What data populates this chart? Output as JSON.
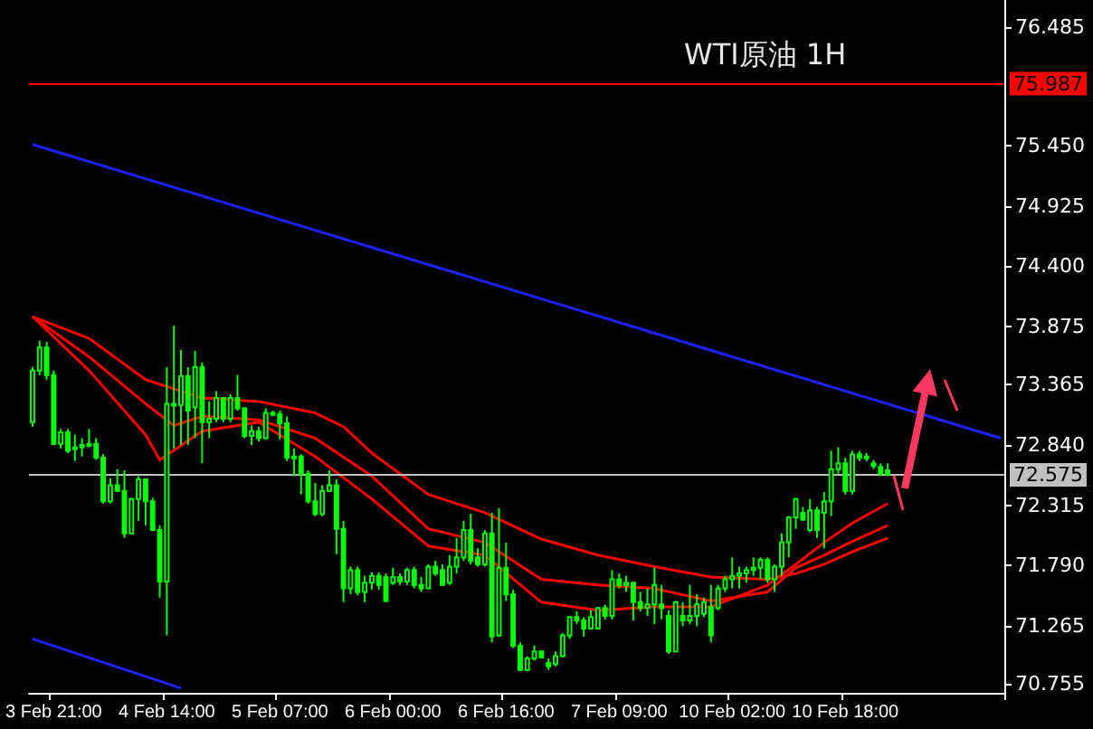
{
  "chart_data": {
    "type": "candlestick",
    "title": "WTI原油 1H",
    "color": "#00ff00",
    "categories": [
      null,
      null,
      null,
      "3 Feb 21:00",
      null,
      null,
      null,
      null,
      null,
      null,
      null,
      null,
      null,
      null,
      null,
      null,
      null,
      null,
      null,
      "4 Feb 14:00",
      null,
      null,
      null,
      null,
      null,
      null,
      null,
      null,
      null,
      null,
      null,
      null,
      null,
      null,
      null,
      "5 Feb 07:00",
      null,
      null,
      null,
      null,
      null,
      null,
      null,
      null,
      null,
      null,
      null,
      null,
      null,
      null,
      null,
      "6 Feb 00:00",
      null,
      null,
      null,
      null,
      null,
      null,
      null,
      null,
      null,
      null,
      null,
      null,
      null,
      null,
      null,
      "6 Feb 16:00",
      null,
      null,
      null,
      null,
      null,
      null,
      null,
      null,
      null,
      null,
      null,
      null,
      null,
      null,
      null,
      "7 Feb 09:00",
      null,
      null,
      null,
      null,
      null,
      null,
      null,
      null,
      null,
      null,
      null,
      null,
      null,
      null,
      null,
      "10 Feb 02:00",
      null,
      null,
      null,
      null,
      null,
      null,
      null,
      null,
      null,
      null,
      null,
      null,
      null,
      null,
      null,
      "10 Feb 18:00",
      null,
      null,
      null,
      null,
      null,
      null,
      null,
      null,
      null,
      null,
      null,
      null,
      null,
      null,
      null,
      null,
      null,
      null,
      null,
      null,
      null,
      null
    ],
    "ohlc": [
      [
        73.04,
        73.52,
        73.0,
        73.49
      ],
      [
        73.49,
        73.75,
        73.45,
        73.69
      ],
      [
        73.69,
        73.74,
        73.41,
        73.45
      ],
      [
        73.45,
        73.49,
        72.84,
        72.85
      ],
      [
        72.85,
        72.98,
        72.81,
        72.95
      ],
      [
        72.95,
        72.98,
        72.77,
        72.79
      ],
      [
        72.81,
        72.93,
        72.7,
        72.82
      ],
      [
        72.82,
        72.9,
        72.74,
        72.84
      ],
      [
        72.84,
        72.98,
        72.82,
        72.85
      ],
      [
        72.85,
        72.9,
        72.71,
        72.73
      ],
      [
        72.73,
        72.76,
        72.33,
        72.35
      ],
      [
        72.35,
        72.55,
        72.33,
        72.49
      ],
      [
        72.49,
        72.63,
        72.43,
        72.44
      ],
      [
        72.44,
        72.62,
        72.03,
        72.07
      ],
      [
        72.07,
        72.38,
        72.07,
        72.37
      ],
      [
        72.37,
        72.57,
        72.18,
        72.54
      ],
      [
        72.54,
        72.55,
        72.14,
        72.35
      ],
      [
        72.35,
        72.38,
        72.1,
        72.1
      ],
      [
        72.1,
        72.14,
        71.51,
        71.65
      ],
      [
        71.65,
        73.52,
        71.18,
        73.2
      ],
      [
        73.2,
        73.88,
        72.81,
        73.19
      ],
      [
        73.19,
        73.67,
        72.84,
        73.44
      ],
      [
        73.44,
        73.52,
        72.84,
        73.14
      ],
      [
        73.17,
        73.66,
        72.9,
        73.52
      ],
      [
        73.52,
        73.56,
        72.68,
        73.04
      ],
      [
        73.04,
        73.22,
        72.9,
        73.07
      ],
      [
        73.07,
        73.31,
        73.04,
        73.25
      ],
      [
        73.25,
        73.25,
        73.04,
        73.07
      ],
      [
        73.07,
        73.28,
        73.04,
        73.25
      ],
      [
        73.25,
        73.45,
        73.14,
        73.16
      ],
      [
        73.16,
        73.17,
        72.9,
        72.92
      ],
      [
        72.92,
        73.01,
        72.84,
        72.96
      ],
      [
        72.96,
        73.0,
        72.87,
        72.9
      ],
      [
        72.9,
        73.16,
        72.89,
        73.12
      ],
      [
        73.12,
        73.14,
        73.09,
        73.11
      ],
      [
        73.11,
        73.14,
        72.89,
        73.03
      ],
      [
        73.03,
        73.09,
        72.7,
        72.73
      ],
      [
        72.73,
        72.81,
        72.57,
        72.74
      ],
      [
        72.74,
        72.76,
        72.41,
        72.59
      ],
      [
        72.59,
        72.62,
        72.33,
        72.35
      ],
      [
        72.35,
        72.51,
        72.22,
        72.24
      ],
      [
        72.24,
        72.49,
        72.22,
        72.44
      ],
      [
        72.44,
        72.62,
        72.43,
        72.49
      ],
      [
        72.49,
        72.54,
        71.89,
        72.11
      ],
      [
        72.11,
        72.18,
        71.47,
        71.59
      ],
      [
        71.59,
        71.78,
        71.54,
        71.75
      ],
      [
        71.75,
        71.78,
        71.53,
        71.56
      ],
      [
        71.56,
        71.7,
        71.47,
        71.64
      ],
      [
        71.64,
        71.73,
        71.58,
        71.7
      ],
      [
        71.7,
        71.73,
        71.58,
        71.62
      ],
      [
        71.69,
        71.72,
        71.47,
        71.48
      ],
      [
        71.64,
        71.77,
        71.62,
        71.69
      ],
      [
        71.69,
        71.72,
        71.62,
        71.65
      ],
      [
        71.65,
        71.77,
        71.62,
        71.75
      ],
      [
        71.75,
        71.78,
        71.59,
        71.62
      ],
      [
        71.62,
        71.69,
        71.56,
        71.59
      ],
      [
        71.59,
        71.8,
        71.59,
        71.78
      ],
      [
        71.78,
        71.83,
        71.7,
        71.72
      ],
      [
        71.75,
        71.8,
        71.62,
        71.62
      ],
      [
        71.64,
        71.88,
        71.62,
        71.78
      ],
      [
        71.78,
        72.03,
        71.72,
        71.86
      ],
      [
        71.86,
        72.18,
        71.83,
        72.1
      ],
      [
        72.1,
        72.24,
        71.8,
        71.83
      ],
      [
        71.86,
        71.94,
        71.78,
        71.8
      ],
      [
        71.8,
        72.1,
        71.78,
        72.07
      ],
      [
        72.07,
        72.25,
        71.12,
        71.17
      ],
      [
        71.18,
        72.29,
        71.17,
        71.77
      ],
      [
        71.77,
        71.99,
        71.48,
        71.54
      ],
      [
        71.54,
        71.58,
        71.07,
        71.09
      ],
      [
        71.09,
        71.12,
        70.87,
        70.88
      ],
      [
        70.88,
        71.0,
        70.87,
        70.98
      ],
      [
        70.98,
        71.09,
        70.96,
        71.04
      ],
      [
        71.04,
        71.05,
        70.98,
        70.99
      ],
      [
        70.94,
        70.98,
        70.88,
        70.91
      ],
      [
        70.93,
        71.04,
        70.91,
        71.0
      ],
      [
        71.0,
        71.2,
        70.99,
        71.18
      ],
      [
        71.18,
        71.35,
        71.15,
        71.34
      ],
      [
        71.34,
        71.39,
        71.28,
        71.31
      ],
      [
        71.31,
        71.34,
        71.17,
        71.24
      ],
      [
        71.24,
        71.4,
        71.24,
        71.34
      ],
      [
        71.24,
        71.43,
        71.24,
        71.42
      ],
      [
        71.42,
        71.45,
        71.32,
        71.35
      ],
      [
        71.35,
        71.75,
        71.32,
        71.67
      ],
      [
        71.67,
        71.72,
        71.59,
        71.62
      ],
      [
        71.62,
        71.7,
        71.56,
        71.64
      ],
      [
        71.64,
        71.64,
        71.31,
        71.47
      ],
      [
        71.47,
        71.56,
        71.39,
        71.42
      ],
      [
        71.42,
        71.59,
        71.35,
        71.45
      ],
      [
        71.45,
        71.77,
        71.28,
        71.62
      ],
      [
        71.45,
        71.62,
        71.32,
        71.42
      ],
      [
        71.35,
        71.4,
        71.02,
        71.04
      ],
      [
        71.04,
        71.48,
        71.04,
        71.47
      ],
      [
        71.35,
        71.47,
        71.26,
        71.31
      ],
      [
        71.31,
        71.62,
        71.28,
        71.35
      ],
      [
        71.35,
        71.54,
        71.26,
        71.45
      ],
      [
        71.37,
        71.51,
        71.34,
        71.47
      ],
      [
        71.43,
        71.62,
        71.12,
        71.18
      ],
      [
        71.42,
        71.62,
        71.4,
        71.59
      ],
      [
        71.59,
        71.7,
        71.56,
        71.67
      ],
      [
        71.67,
        71.86,
        71.59,
        71.7
      ],
      [
        71.7,
        71.78,
        71.59,
        71.72
      ],
      [
        71.72,
        71.78,
        71.64,
        71.75
      ],
      [
        71.75,
        71.86,
        71.7,
        71.77
      ],
      [
        71.77,
        71.86,
        71.67,
        71.84
      ],
      [
        71.84,
        71.86,
        71.64,
        71.67
      ],
      [
        71.67,
        71.8,
        71.56,
        71.78
      ],
      [
        71.78,
        72.07,
        71.7,
        71.99
      ],
      [
        71.99,
        72.22,
        71.86,
        72.21
      ],
      [
        72.21,
        72.38,
        72.11,
        72.37
      ],
      [
        72.25,
        72.3,
        72.18,
        72.19
      ],
      [
        72.1,
        72.37,
        72.08,
        72.27
      ],
      [
        72.27,
        72.3,
        72.03,
        72.1
      ],
      [
        72.25,
        72.43,
        71.94,
        72.35
      ],
      [
        72.35,
        72.79,
        72.22,
        72.63
      ],
      [
        72.63,
        72.82,
        72.59,
        72.68
      ],
      [
        72.68,
        72.73,
        72.41,
        72.44
      ],
      [
        72.44,
        72.79,
        72.41,
        72.76
      ],
      [
        72.76,
        72.79,
        72.7,
        72.73
      ],
      [
        72.73,
        72.77,
        72.7,
        72.74
      ],
      [
        72.68,
        72.71,
        72.63,
        72.66
      ],
      [
        72.65,
        72.68,
        72.57,
        72.59
      ],
      [
        72.62,
        72.68,
        72.57,
        72.58
      ],
      null,
      null,
      null,
      null,
      null,
      null,
      null,
      null,
      null,
      null,
      null,
      null,
      null,
      null,
      null,
      null
    ],
    "series": [
      {
        "type": "line",
        "color": "#ff0000",
        "values": [
          73.96,
          null,
          null,
          null,
          null,
          null,
          null,
          null,
          73.77,
          null,
          null,
          null,
          null,
          null,
          null,
          null,
          73.41,
          null,
          null,
          null,
          null,
          null,
          null,
          null,
          73.25,
          null,
          null,
          null,
          null,
          null,
          null,
          null,
          73.22,
          null,
          null,
          null,
          null,
          null,
          null,
          null,
          73.12,
          null,
          null,
          null,
          73.0,
          null,
          null,
          null,
          72.77,
          null,
          null,
          null,
          null,
          null,
          null,
          null,
          72.41,
          null,
          null,
          null,
          null,
          null,
          null,
          null,
          72.25,
          null,
          null,
          null,
          null,
          null,
          null,
          null,
          72.02,
          null,
          null,
          null,
          null,
          null,
          null,
          null,
          71.88,
          null,
          null,
          null,
          null,
          null,
          null,
          null,
          71.78,
          null,
          null,
          null,
          null,
          null,
          null,
          null,
          71.69,
          null,
          null,
          null,
          null,
          null,
          null,
          null,
          71.67,
          null,
          null,
          null,
          71.72,
          null,
          null,
          null,
          71.8,
          null,
          null,
          null,
          71.91,
          null,
          null,
          null,
          null,
          72.03,
          null,
          null,
          null,
          null,
          null,
          null,
          null,
          null,
          null,
          null,
          null,
          null,
          null,
          null,
          null,
          null
        ]
      },
      {
        "type": "line",
        "color": "#ff0000",
        "values": [
          73.96,
          null,
          null,
          null,
          null,
          null,
          null,
          null,
          73.61,
          null,
          null,
          null,
          null,
          null,
          null,
          null,
          73.2,
          null,
          null,
          null,
          73.01,
          null,
          null,
          null,
          73.09,
          null,
          null,
          null,
          null,
          null,
          null,
          null,
          73.06,
          null,
          null,
          null,
          null,
          null,
          null,
          null,
          72.9,
          null,
          null,
          null,
          null,
          null,
          null,
          null,
          72.57,
          null,
          null,
          null,
          null,
          null,
          null,
          null,
          72.11,
          null,
          null,
          null,
          null,
          null,
          null,
          null,
          71.99,
          null,
          null,
          null,
          null,
          null,
          null,
          null,
          71.67,
          null,
          null,
          null,
          null,
          null,
          null,
          null,
          71.62,
          null,
          null,
          null,
          null,
          null,
          null,
          null,
          71.59,
          null,
          null,
          null,
          null,
          null,
          null,
          null,
          71.48,
          null,
          null,
          null,
          null,
          null,
          null,
          null,
          71.56,
          null,
          null,
          null,
          71.77,
          null,
          null,
          null,
          71.88,
          null,
          null,
          null,
          72.0,
          null,
          null,
          null,
          null,
          72.14,
          null,
          null,
          null,
          null,
          null,
          null,
          null,
          null,
          null,
          null,
          null,
          null,
          null,
          null,
          null,
          null
        ]
      },
      {
        "type": "line",
        "color": "#ff0000",
        "values": [
          73.96,
          null,
          null,
          null,
          null,
          null,
          null,
          null,
          73.49,
          null,
          null,
          null,
          null,
          null,
          null,
          null,
          72.93,
          null,
          72.71,
          null,
          null,
          null,
          null,
          null,
          72.96,
          null,
          null,
          null,
          null,
          null,
          null,
          null,
          73.04,
          null,
          null,
          null,
          null,
          null,
          null,
          null,
          72.74,
          null,
          null,
          null,
          null,
          null,
          null,
          null,
          72.37,
          null,
          null,
          null,
          null,
          null,
          null,
          null,
          71.96,
          null,
          null,
          null,
          null,
          null,
          null,
          null,
          71.88,
          null,
          null,
          null,
          null,
          null,
          null,
          null,
          71.47,
          null,
          null,
          null,
          null,
          null,
          null,
          null,
          71.4,
          null,
          null,
          null,
          null,
          null,
          null,
          null,
          71.43,
          null,
          null,
          null,
          null,
          null,
          null,
          null,
          71.43,
          null,
          null,
          null,
          null,
          null,
          null,
          null,
          71.62,
          null,
          null,
          null,
          71.8,
          null,
          null,
          null,
          71.99,
          null,
          null,
          null,
          72.16,
          null,
          null,
          null,
          null,
          72.33,
          null,
          null,
          null,
          null,
          null,
          null,
          null,
          null,
          null,
          null,
          null,
          null,
          null,
          null,
          null,
          null
        ]
      },
      {
        "type": "line",
        "color": "#2020ff",
        "values": [
          75.46,
          null,
          null,
          null,
          null,
          null,
          null,
          null,
          null,
          null,
          null,
          null,
          null,
          null,
          null,
          null,
          null,
          null,
          null,
          null,
          null,
          null,
          null,
          null,
          null,
          null,
          null,
          null,
          null,
          null,
          null,
          null,
          null,
          null,
          null,
          null,
          null,
          null,
          null,
          null,
          null,
          null,
          null,
          null,
          null,
          null,
          null,
          null,
          null,
          null,
          null,
          null,
          null,
          null,
          null,
          null,
          null,
          null,
          null,
          null,
          null,
          null,
          null,
          null,
          null,
          null,
          null,
          null,
          null,
          null,
          null,
          null,
          null,
          null,
          null,
          null,
          null,
          null,
          null,
          null,
          null,
          null,
          null,
          null,
          null,
          null,
          null,
          null,
          null,
          null,
          null,
          null,
          null,
          null,
          null,
          null,
          null,
          null,
          null,
          null,
          null,
          null,
          null,
          null,
          null,
          null,
          null,
          null,
          null,
          null,
          null,
          null,
          null,
          null,
          null,
          null,
          null,
          null,
          null,
          null,
          null,
          null,
          null,
          null,
          null,
          null,
          null,
          null,
          null,
          null,
          null,
          null,
          null,
          null,
          null,
          null,
          null,
          72.9
        ]
      },
      {
        "type": "line",
        "color": "#2020ff",
        "values": [
          71.15,
          null,
          null,
          null,
          null,
          null,
          null,
          null,
          null,
          null,
          null,
          null,
          null,
          null,
          null,
          null,
          null,
          null,
          null,
          null,
          null,
          70.72,
          null,
          null,
          null,
          null,
          null,
          null,
          null,
          null,
          null,
          null,
          null,
          null,
          null,
          null,
          null,
          null,
          null,
          null,
          null,
          null,
          null,
          null,
          null,
          null,
          null,
          null,
          null,
          null,
          null,
          null,
          null,
          null,
          null,
          null,
          null,
          null,
          null,
          null,
          null,
          null,
          null,
          null,
          null,
          null,
          null,
          null,
          null,
          null,
          null,
          null,
          null,
          null,
          null,
          null,
          null,
          null,
          null,
          null,
          null,
          null,
          null,
          null,
          null,
          null,
          null,
          null,
          null,
          null,
          null,
          null,
          null,
          null,
          null,
          null,
          null,
          null,
          null,
          null,
          null,
          null,
          null,
          null,
          null,
          null,
          null,
          null,
          null,
          null,
          null,
          null,
          null,
          null,
          null,
          null,
          null,
          null,
          null,
          null,
          null,
          null,
          null,
          null,
          null,
          null,
          null,
          null,
          null,
          null,
          null,
          null,
          null,
          null,
          null,
          null,
          null,
          null
        ]
      }
    ],
    "ylim": [
      70.68,
      76.72
    ],
    "yticks": [
      70.755,
      71.265,
      {
        "value": 71.79,
        "label": "71.790"
      },
      72.315,
      {
        "value": 72.84,
        "label": "72.840"
      },
      73.365,
      73.875,
      {
        "value": 74.4,
        "label": "74.400"
      },
      74.925,
      {
        "value": 75.45,
        "label": "75.450"
      },
      76.485
    ],
    "ref_lines": [
      {
        "axis": "y",
        "value": 75.987,
        "label": "75.987",
        "color": "#ff0000"
      },
      {
        "axis": "y",
        "value": 72.575,
        "label": "72.575",
        "color": "#c0c0c0"
      }
    ],
    "grid": false
  }
}
